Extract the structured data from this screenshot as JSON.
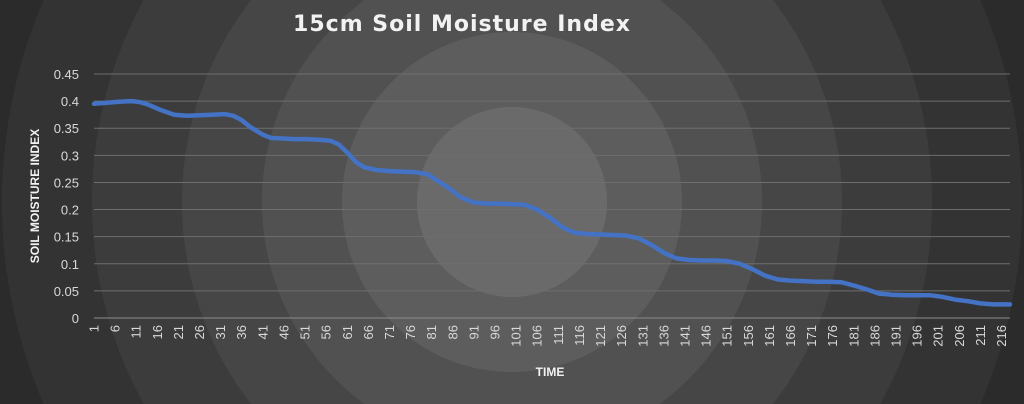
{
  "chart_data": {
    "type": "line",
    "title": "15cm Soil Moisture Index",
    "xlabel": "TIME",
    "ylabel": "SOIL MOISTURE INDEX",
    "x_tick_labels": [
      "1",
      "6",
      "11",
      "16",
      "21",
      "26",
      "31",
      "36",
      "41",
      "46",
      "51",
      "56",
      "61",
      "66",
      "71",
      "76",
      "81",
      "86",
      "91",
      "96",
      "101",
      "106",
      "111",
      "116",
      "121",
      "126",
      "131",
      "136",
      "141",
      "146",
      "151",
      "156",
      "161",
      "166",
      "171",
      "176",
      "181",
      "186",
      "191",
      "196",
      "201",
      "206",
      "211",
      "216"
    ],
    "y_tick_labels": [
      "0",
      "0.05",
      "0.1",
      "0.15",
      "0.2",
      "0.25",
      "0.3",
      "0.35",
      "0.4",
      "0.45"
    ],
    "ylim": [
      0,
      0.45
    ],
    "xlim": [
      1,
      218
    ],
    "grid": true,
    "legend": false,
    "series": [
      {
        "color": "#4472c4",
        "x": [
          1,
          4,
          7,
          10,
          12,
          14,
          17,
          20,
          23,
          26,
          29,
          32,
          34,
          36,
          38,
          41,
          43,
          46,
          48,
          51,
          54,
          57,
          59,
          61,
          63,
          65,
          68,
          71,
          74,
          77,
          80,
          82,
          85,
          88,
          91,
          94,
          97,
          100,
          103,
          106,
          109,
          112,
          115,
          118,
          121,
          124,
          127,
          130,
          133,
          136,
          139,
          142,
          145,
          148,
          151,
          154,
          157,
          160,
          163,
          166,
          169,
          172,
          175,
          178,
          181,
          184,
          187,
          190,
          193,
          196,
          199,
          202,
          205,
          208,
          211,
          214,
          218
        ],
        "y": [
          0.395,
          0.397,
          0.399,
          0.4,
          0.398,
          0.393,
          0.383,
          0.375,
          0.373,
          0.374,
          0.375,
          0.376,
          0.373,
          0.365,
          0.352,
          0.338,
          0.332,
          0.331,
          0.33,
          0.33,
          0.329,
          0.327,
          0.32,
          0.305,
          0.288,
          0.278,
          0.273,
          0.271,
          0.27,
          0.269,
          0.265,
          0.255,
          0.24,
          0.222,
          0.213,
          0.211,
          0.211,
          0.21,
          0.209,
          0.2,
          0.185,
          0.167,
          0.157,
          0.155,
          0.154,
          0.153,
          0.152,
          0.147,
          0.135,
          0.12,
          0.11,
          0.107,
          0.106,
          0.106,
          0.105,
          0.1,
          0.09,
          0.078,
          0.071,
          0.069,
          0.068,
          0.067,
          0.067,
          0.066,
          0.06,
          0.053,
          0.045,
          0.043,
          0.042,
          0.042,
          0.042,
          0.039,
          0.034,
          0.031,
          0.027,
          0.025,
          0.025
        ]
      }
    ]
  }
}
